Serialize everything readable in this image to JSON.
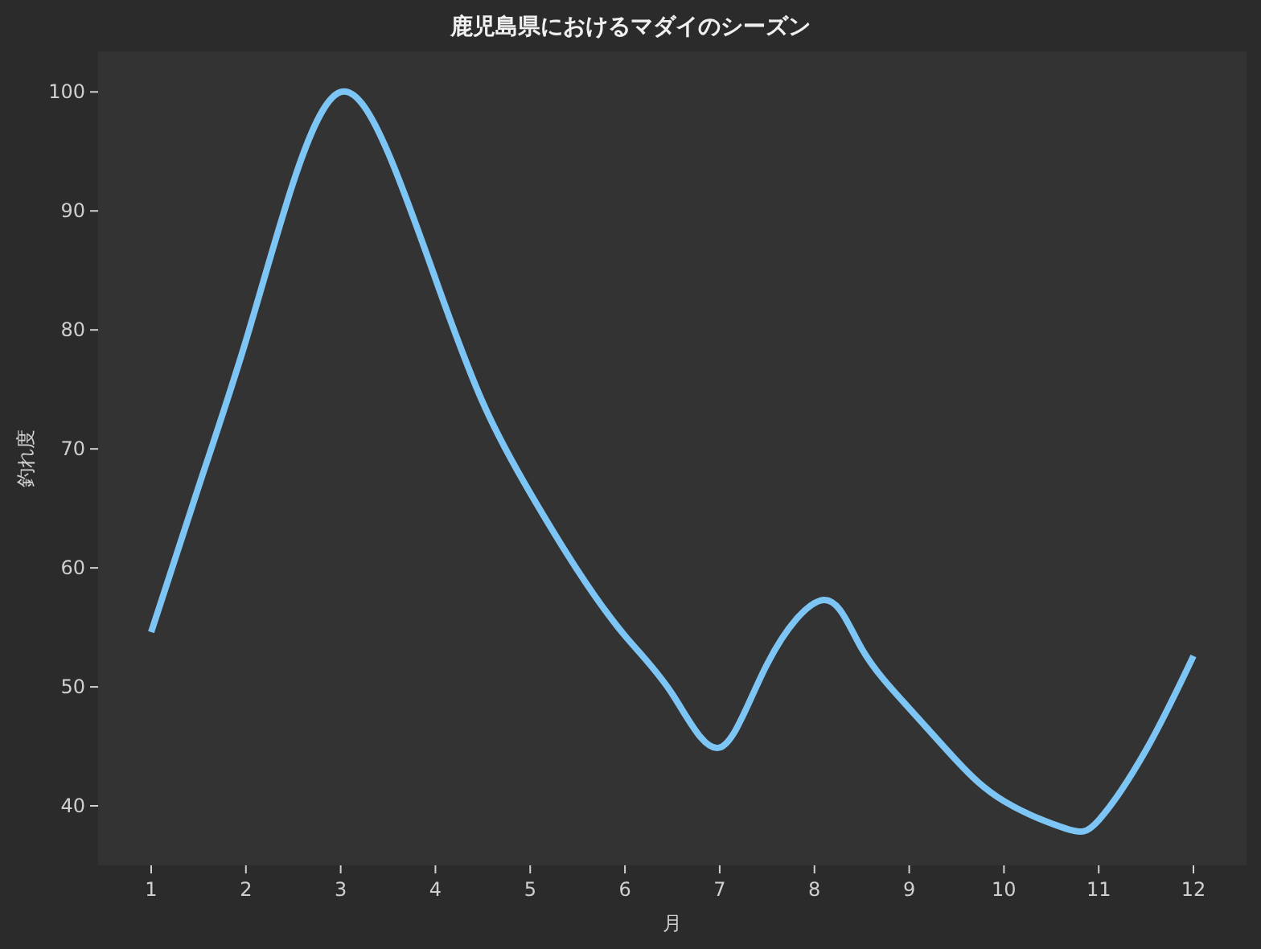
{
  "chart_data": {
    "type": "line",
    "title": "鹿児島県におけるマダイのシーズン",
    "xlabel": "月",
    "ylabel": "釣れ度",
    "x": [
      1,
      1.5,
      2,
      2.5,
      3,
      3.5,
      4,
      4.5,
      5,
      5.5,
      6,
      6.5,
      7,
      7.5,
      8.1,
      8.5,
      9,
      9.5,
      10,
      10.65,
      11,
      11.5,
      12
    ],
    "series": [
      {
        "color": "#7cc5f5",
        "values": [
          54.6,
          66.8,
          79.1,
          92.4,
          100,
          94.9,
          84.3,
          73.9,
          66.3,
          59.8,
          54.3,
          49.4,
          44.9,
          51.9,
          57.3,
          53.2,
          48.2,
          43.8,
          40.4,
          38.1,
          38.8,
          44.7,
          52.6
        ]
      }
    ],
    "xlim": [
      0.44,
      12.56
    ],
    "ylim": [
      35,
      103.4
    ],
    "xticks": [
      1,
      2,
      3,
      4,
      5,
      6,
      7,
      8,
      9,
      10,
      11,
      12
    ],
    "yticks": [
      40,
      50,
      60,
      70,
      80,
      90,
      100
    ],
    "grid": false,
    "marker": "none",
    "line_style": "solid"
  }
}
